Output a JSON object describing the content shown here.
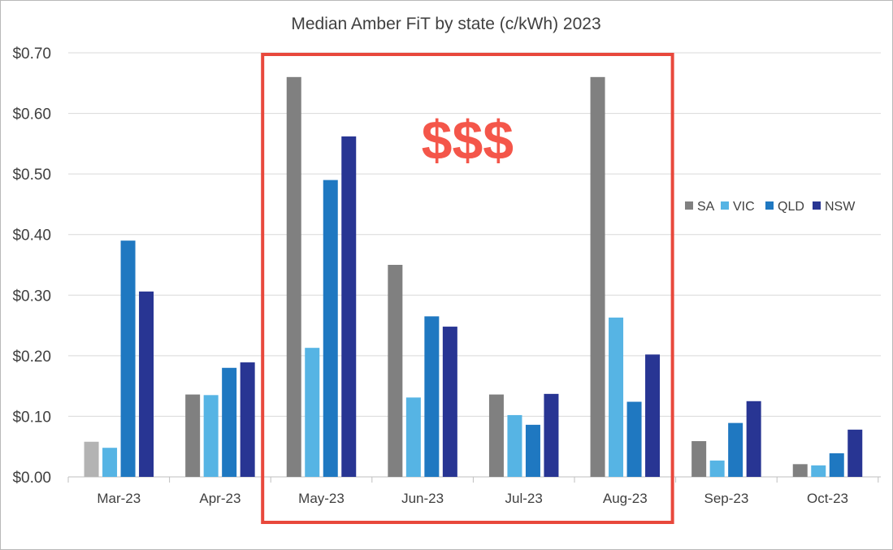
{
  "chart_data": {
    "type": "bar",
    "title": "Median Amber FiT by state (c/kWh) 2023",
    "xlabel": "",
    "ylabel": "",
    "ylim": [
      0,
      0.7
    ],
    "yticks": [
      {
        "value": 0.0,
        "label": "$0.00"
      },
      {
        "value": 0.1,
        "label": "$0.10"
      },
      {
        "value": 0.2,
        "label": "$0.20"
      },
      {
        "value": 0.3,
        "label": "$0.30"
      },
      {
        "value": 0.4,
        "label": "$0.40"
      },
      {
        "value": 0.5,
        "label": "$0.50"
      },
      {
        "value": 0.6,
        "label": "$0.60"
      },
      {
        "value": 0.7,
        "label": "$0.70"
      }
    ],
    "grid": true,
    "legend_position": "right",
    "categories": [
      "Mar-23",
      "Apr-23",
      "May-23",
      "Jun-23",
      "Jul-23",
      "Aug-23",
      "Sep-23",
      "Oct-23"
    ],
    "series": [
      {
        "name": "SA",
        "color": "#808080",
        "values": [
          0.058,
          0.136,
          0.66,
          0.35,
          0.136,
          0.66,
          0.059,
          0.021
        ]
      },
      {
        "name": "VIC",
        "color": "#56b4e4",
        "values": [
          0.048,
          0.135,
          0.213,
          0.131,
          0.102,
          0.263,
          0.027,
          0.019
        ]
      },
      {
        "name": "QLD",
        "color": "#1f78c1",
        "values": [
          0.39,
          0.18,
          0.49,
          0.265,
          0.086,
          0.124,
          0.089,
          0.039
        ]
      },
      {
        "name": "NSW",
        "color": "#283593",
        "values": [
          0.306,
          0.189,
          0.562,
          0.248,
          0.137,
          0.202,
          0.125,
          0.078
        ]
      }
    ],
    "first_bar_color": "#b3b3b3",
    "highlight": {
      "from_category": "May-23",
      "to_category": "Aug-23",
      "color": "#e8483c",
      "label": "$$$"
    }
  }
}
